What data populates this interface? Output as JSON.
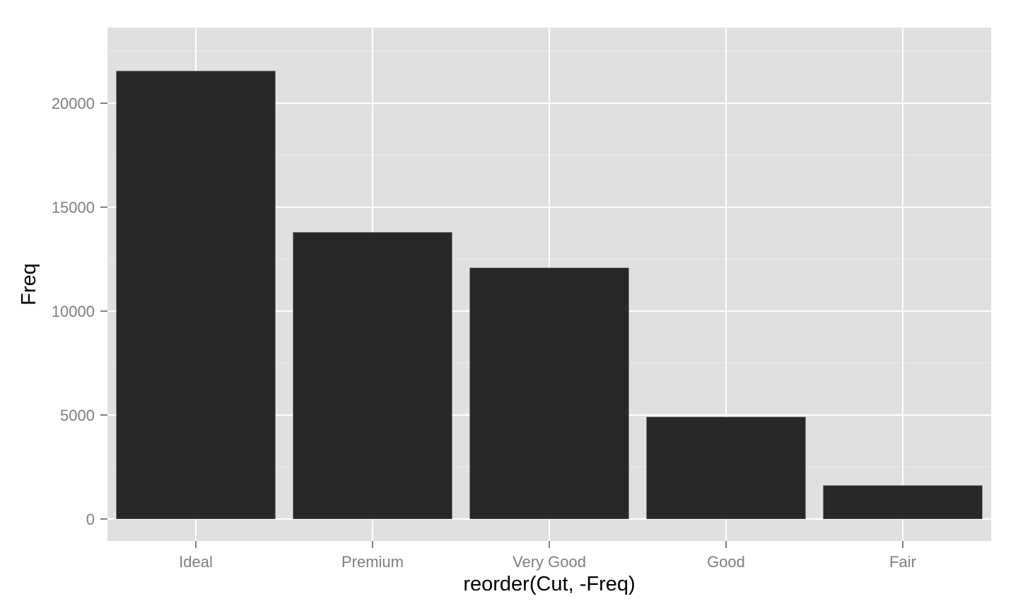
{
  "chart_data": {
    "type": "bar",
    "categories": [
      "Ideal",
      "Premium",
      "Very Good",
      "Good",
      "Fair"
    ],
    "values": [
      21551,
      13791,
      12082,
      4906,
      1610
    ],
    "xlabel": "reorder(Cut, -Freq)",
    "ylabel": "Freq",
    "ylim": [
      -1060,
      23640
    ],
    "yticks": [
      0,
      5000,
      10000,
      15000,
      20000
    ],
    "ytick_labels": [
      "0",
      "5000",
      "10000",
      "15000",
      "20000"
    ],
    "grid": true,
    "colors": {
      "panel_background": "#e0e0e0",
      "grid_major": "#ffffff",
      "grid_minor": "#ececec",
      "bar_fill": "#282828",
      "tick_label": "#7f7f7f",
      "axis_title": "#000000"
    }
  }
}
